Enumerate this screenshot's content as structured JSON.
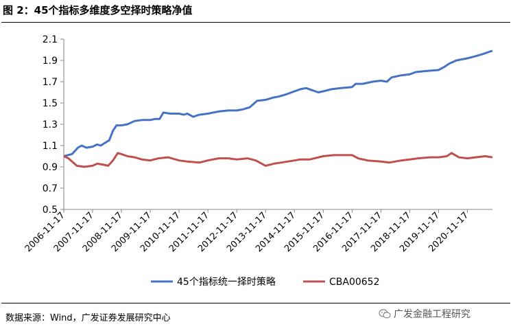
{
  "header": {
    "title": "图 2：45个指标多维度多空择时策略净值"
  },
  "footer": {
    "source": "数据来源：Wind，广发证券发展研究中心",
    "watermark": "广发金融工程研究",
    "watermark_icon": "wechat-icon"
  },
  "chart_data": {
    "type": "line",
    "title": "",
    "xlabel": "",
    "ylabel": "",
    "ylim": [
      0.5,
      2.1
    ],
    "yticks": [
      "0.5",
      "0.7",
      "0.9",
      "1.1",
      "1.3",
      "1.5",
      "1.7",
      "1.9",
      "2.1"
    ],
    "x_tick_labels": [
      "2006-11-17",
      "2007-11-17",
      "2008-11-17",
      "2009-11-17",
      "2010-11-17",
      "2011-11-17",
      "2012-11-17",
      "2013-11-17",
      "2014-11-17",
      "2015-11-17",
      "2016-11-17",
      "2017-11-17",
      "2018-11-17",
      "2019-11-17",
      "2020-11-17"
    ],
    "x_range": [
      "2006-11-17",
      "2021-09-30"
    ],
    "grid": false,
    "legend_position": "bottom",
    "series": [
      {
        "name": "45个指标统一择时策略",
        "color": "#4472C4",
        "points": [
          [
            "2006-11-17",
            1.0
          ],
          [
            "2007-03-01",
            1.02
          ],
          [
            "2007-05-15",
            1.08
          ],
          [
            "2007-07-01",
            1.1
          ],
          [
            "2007-09-01",
            1.08
          ],
          [
            "2007-11-17",
            1.09
          ],
          [
            "2008-01-15",
            1.11
          ],
          [
            "2008-03-01",
            1.1
          ],
          [
            "2008-05-01",
            1.13
          ],
          [
            "2008-06-15",
            1.15
          ],
          [
            "2008-08-01",
            1.24
          ],
          [
            "2008-09-15",
            1.29
          ],
          [
            "2008-11-17",
            1.29
          ],
          [
            "2009-02-01",
            1.3
          ],
          [
            "2009-05-01",
            1.33
          ],
          [
            "2009-08-01",
            1.34
          ],
          [
            "2009-11-17",
            1.34
          ],
          [
            "2010-01-15",
            1.35
          ],
          [
            "2010-03-15",
            1.35
          ],
          [
            "2010-05-01",
            1.41
          ],
          [
            "2010-08-01",
            1.4
          ],
          [
            "2010-11-17",
            1.4
          ],
          [
            "2011-01-15",
            1.39
          ],
          [
            "2011-03-01",
            1.4
          ],
          [
            "2011-05-15",
            1.37
          ],
          [
            "2011-08-01",
            1.39
          ],
          [
            "2011-11-17",
            1.4
          ],
          [
            "2012-04-01",
            1.42
          ],
          [
            "2012-08-01",
            1.43
          ],
          [
            "2012-11-17",
            1.43
          ],
          [
            "2013-02-01",
            1.44
          ],
          [
            "2013-05-01",
            1.46
          ],
          [
            "2013-08-01",
            1.52
          ],
          [
            "2013-11-17",
            1.53
          ],
          [
            "2014-02-15",
            1.55
          ],
          [
            "2014-05-01",
            1.56
          ],
          [
            "2014-08-01",
            1.58
          ],
          [
            "2014-11-17",
            1.61
          ],
          [
            "2015-02-01",
            1.63
          ],
          [
            "2015-04-15",
            1.64
          ],
          [
            "2015-07-01",
            1.62
          ],
          [
            "2015-09-15",
            1.6
          ],
          [
            "2015-11-17",
            1.61
          ],
          [
            "2016-03-01",
            1.63
          ],
          [
            "2016-07-01",
            1.64
          ],
          [
            "2016-11-17",
            1.65
          ],
          [
            "2017-01-01",
            1.68
          ],
          [
            "2017-04-01",
            1.68
          ],
          [
            "2017-08-01",
            1.7
          ],
          [
            "2017-11-17",
            1.71
          ],
          [
            "2018-02-01",
            1.7
          ],
          [
            "2018-04-01",
            1.74
          ],
          [
            "2018-08-01",
            1.76
          ],
          [
            "2018-11-17",
            1.77
          ],
          [
            "2019-02-01",
            1.79
          ],
          [
            "2019-06-01",
            1.8
          ],
          [
            "2019-11-17",
            1.81
          ],
          [
            "2020-02-01",
            1.84
          ],
          [
            "2020-04-01",
            1.87
          ],
          [
            "2020-07-01",
            1.9
          ],
          [
            "2020-11-17",
            1.92
          ],
          [
            "2021-03-01",
            1.94
          ],
          [
            "2021-06-01",
            1.96
          ],
          [
            "2021-08-15",
            1.98
          ],
          [
            "2021-09-30",
            1.99
          ]
        ]
      },
      {
        "name": "CBA00652",
        "color": "#C0504D",
        "points": [
          [
            "2006-11-17",
            1.0
          ],
          [
            "2007-01-15",
            0.98
          ],
          [
            "2007-03-01",
            0.95
          ],
          [
            "2007-05-01",
            0.91
          ],
          [
            "2007-08-01",
            0.9
          ],
          [
            "2007-11-17",
            0.91
          ],
          [
            "2008-01-15",
            0.93
          ],
          [
            "2008-04-01",
            0.92
          ],
          [
            "2008-06-01",
            0.91
          ],
          [
            "2008-08-01",
            0.96
          ],
          [
            "2008-10-01",
            1.03
          ],
          [
            "2008-11-17",
            1.02
          ],
          [
            "2009-02-01",
            1.0
          ],
          [
            "2009-05-01",
            0.99
          ],
          [
            "2009-08-01",
            0.97
          ],
          [
            "2009-11-17",
            0.96
          ],
          [
            "2010-03-01",
            0.98
          ],
          [
            "2010-07-01",
            0.99
          ],
          [
            "2010-11-17",
            0.96
          ],
          [
            "2011-03-01",
            0.95
          ],
          [
            "2011-08-01",
            0.94
          ],
          [
            "2011-11-17",
            0.96
          ],
          [
            "2012-04-01",
            0.98
          ],
          [
            "2012-08-01",
            0.98
          ],
          [
            "2012-11-17",
            0.97
          ],
          [
            "2013-04-01",
            0.98
          ],
          [
            "2013-07-15",
            0.96
          ],
          [
            "2013-11-17",
            0.91
          ],
          [
            "2014-03-01",
            0.93
          ],
          [
            "2014-06-01",
            0.94
          ],
          [
            "2014-11-17",
            0.96
          ],
          [
            "2015-02-01",
            0.97
          ],
          [
            "2015-06-01",
            0.97
          ],
          [
            "2015-11-17",
            1.0
          ],
          [
            "2016-04-01",
            1.01
          ],
          [
            "2016-08-01",
            1.01
          ],
          [
            "2016-11-17",
            1.01
          ],
          [
            "2017-02-01",
            0.98
          ],
          [
            "2017-06-01",
            0.96
          ],
          [
            "2017-11-17",
            0.95
          ],
          [
            "2018-03-01",
            0.94
          ],
          [
            "2018-08-01",
            0.96
          ],
          [
            "2018-11-17",
            0.97
          ],
          [
            "2019-03-01",
            0.98
          ],
          [
            "2019-08-01",
            0.99
          ],
          [
            "2019-11-17",
            0.99
          ],
          [
            "2020-03-01",
            1.0
          ],
          [
            "2020-05-01",
            1.03
          ],
          [
            "2020-08-01",
            0.99
          ],
          [
            "2020-11-17",
            0.98
          ],
          [
            "2021-03-01",
            0.99
          ],
          [
            "2021-07-01",
            1.0
          ],
          [
            "2021-09-30",
            0.99
          ]
        ]
      }
    ]
  }
}
